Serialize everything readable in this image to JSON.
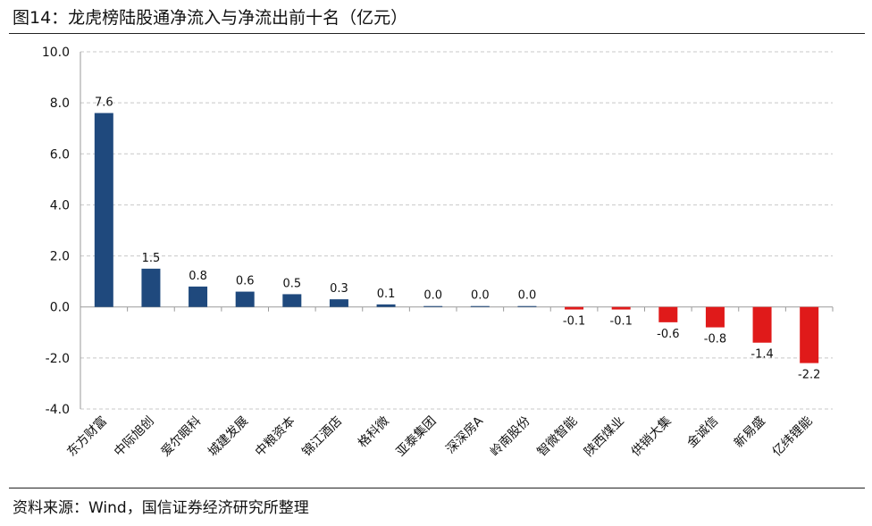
{
  "header": {
    "title": "图14：龙虎榜陆股通净流入与净流出前十名（亿元）"
  },
  "footer": {
    "source": "资料来源：Wind，国信证券经济研究所整理"
  },
  "colors": {
    "positive": "#1F497D",
    "negative": "#E01A1A",
    "grid": "#C8C8C8",
    "axis": "#9A9A9A"
  },
  "chart_data": {
    "type": "bar",
    "categories": [
      "东方财富",
      "中际旭创",
      "爱尔眼科",
      "城建发展",
      "中粮资本",
      "锦江酒店",
      "格科微",
      "亚泰集团",
      "深深房A",
      "岭南股份",
      "智微智能",
      "陕西煤业",
      "供销大集",
      "金诚信",
      "新易盛",
      "亿纬锂能"
    ],
    "values": [
      7.6,
      1.5,
      0.8,
      0.6,
      0.5,
      0.3,
      0.1,
      0.0,
      0.0,
      0.0,
      -0.1,
      -0.1,
      -0.6,
      -0.8,
      -1.4,
      -2.2
    ],
    "labels": [
      "7.6",
      "1.5",
      "0.8",
      "0.6",
      "0.5",
      "0.3",
      "0.1",
      "0.0",
      "0.0",
      "0.0",
      "-0.1",
      "-0.1",
      "-0.6",
      "-0.8",
      "-1.4",
      "-2.2"
    ],
    "yticks": [
      "10.0",
      "8.0",
      "6.0",
      "4.0",
      "2.0",
      "0.0",
      "-2.0",
      "-4.0"
    ],
    "ylim": [
      -4,
      10
    ],
    "grid": true,
    "legend": "none"
  }
}
